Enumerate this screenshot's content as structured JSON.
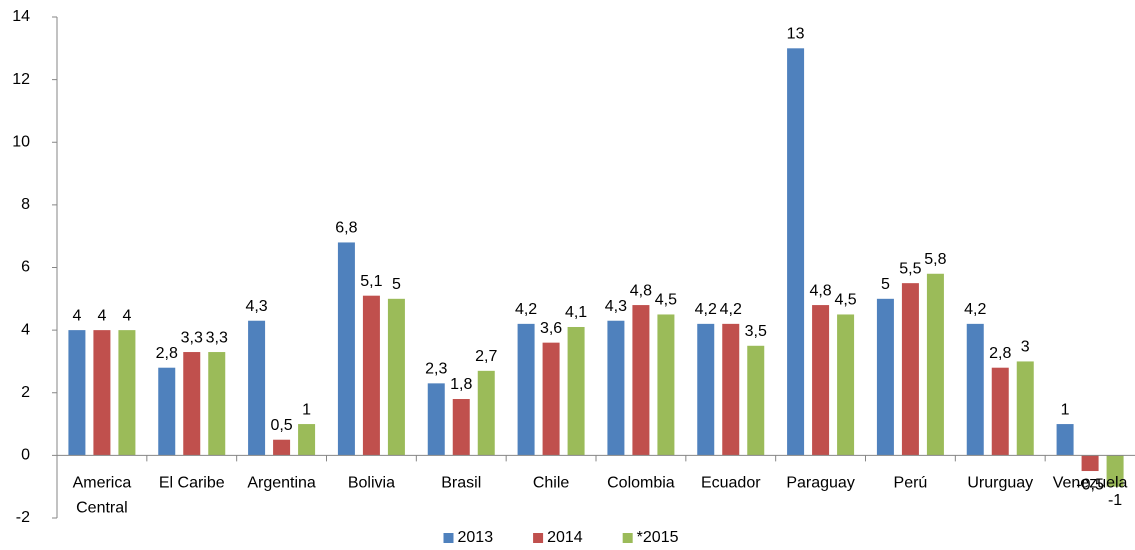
{
  "chart_data": {
    "type": "bar",
    "categories": [
      "America Central",
      "El Caribe",
      "Argentina",
      "Bolivia",
      "Brasil",
      "Chile",
      "Colombia",
      "Ecuador",
      "Paraguay",
      "Perú",
      "Ururguay",
      "Venezuela"
    ],
    "series": [
      {
        "name": "2013",
        "color": "#4f81bd",
        "values": [
          4,
          2.8,
          4.3,
          6.8,
          2.3,
          4.2,
          4.3,
          4.2,
          13,
          5,
          4.2,
          1
        ],
        "value_labels": [
          "4",
          "2,8",
          "4,3",
          "6,8",
          "2,3",
          "4,2",
          "4,3",
          "4,2",
          "13",
          "5",
          "4,2",
          "1"
        ]
      },
      {
        "name": "2014",
        "color": "#c0504d",
        "values": [
          4,
          3.3,
          0.5,
          5.1,
          1.8,
          3.6,
          4.8,
          4.2,
          4.8,
          5.5,
          2.8,
          -0.5
        ],
        "value_labels": [
          "4",
          "3,3",
          "0,5",
          "5,1",
          "1,8",
          "3,6",
          "4,8",
          "4,2",
          "4,8",
          "5,5",
          "2,8",
          "-0,5"
        ]
      },
      {
        "name": "*2015",
        "color": "#9bbb59",
        "values": [
          4,
          3.3,
          1,
          5,
          2.7,
          4.1,
          4.5,
          3.5,
          4.5,
          5.8,
          3,
          -1
        ],
        "value_labels": [
          "4",
          "3,3",
          "1",
          "5",
          "2,7",
          "4,1",
          "4,5",
          "3,5",
          "4,5",
          "5,8",
          "3",
          "-1"
        ]
      }
    ],
    "ylim": [
      -2,
      14
    ],
    "yticks": [
      -2,
      0,
      2,
      4,
      6,
      8,
      10,
      12,
      14
    ],
    "grid": false,
    "legend": "bottom"
  }
}
